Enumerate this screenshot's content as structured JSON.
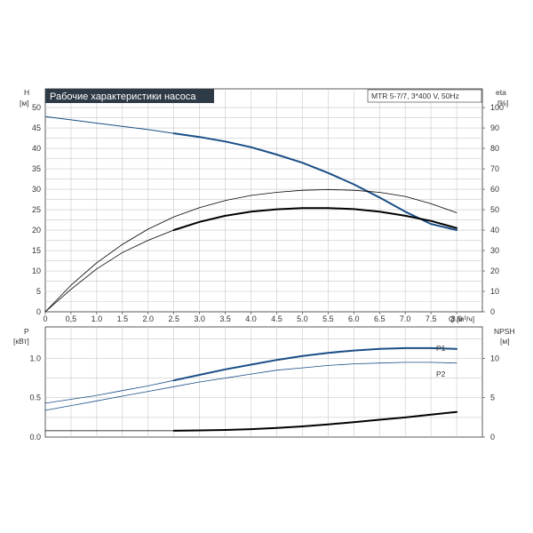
{
  "colors": {
    "title_bg": "#2e3a45",
    "title_fg": "#ffffff",
    "blue": "#1a4e86",
    "grid": "#c8c8c8",
    "axis": "#333333",
    "black": "#000000"
  },
  "header": {
    "title": "Рабочие характеристики насоса",
    "model": "MTR 5-7/7, 3*400 V, 50Hz"
  },
  "chart_data": [
    {
      "type": "line",
      "name": "performance",
      "y_label_left": "H",
      "y_unit_left": "[м]",
      "y_label_right": "eta",
      "y_unit_right": "[%]",
      "x_label": "Q [м³/ч]",
      "xlim": [
        0,
        8.5
      ],
      "ylim": [
        0,
        50
      ],
      "ylim_right": [
        0,
        100
      ],
      "grid": true,
      "x_ticks": [
        "0",
        "0,5",
        "1.0",
        "1.5",
        "2.0",
        "2.5",
        "3.0",
        "3.5",
        "4.0",
        "4.5",
        "5.0",
        "5.5",
        "6.0",
        "6.5",
        "7.0",
        "7.5",
        "8.0"
      ],
      "y_ticks_left": [
        "0",
        "5",
        "10",
        "15",
        "20",
        "25",
        "30",
        "35",
        "40",
        "45",
        "50"
      ],
      "y_ticks_right": [
        "0",
        "10",
        "20",
        "30",
        "40",
        "50",
        "60",
        "70",
        "80",
        "90",
        "100"
      ],
      "series": [
        {
          "role": "head-thin",
          "axis": "left",
          "color": "#1a4e86",
          "width": 1,
          "points": [
            [
              0,
              47.8
            ],
            [
              0.5,
              47.0
            ],
            [
              1.0,
              46.2
            ],
            [
              1.5,
              45.4
            ],
            [
              2.0,
              44.6
            ],
            [
              2.5,
              43.7
            ]
          ]
        },
        {
          "role": "head-thick",
          "axis": "left",
          "color": "#1a4e86",
          "width": 2,
          "points": [
            [
              2.5,
              43.7
            ],
            [
              3.0,
              42.8
            ],
            [
              3.5,
              41.7
            ],
            [
              4.0,
              40.3
            ],
            [
              4.5,
              38.5
            ],
            [
              5.0,
              36.5
            ],
            [
              5.5,
              34.0
            ],
            [
              6.0,
              31.2
            ],
            [
              6.5,
              28.0
            ],
            [
              7.0,
              24.5
            ],
            [
              7.5,
              21.5
            ],
            [
              8.0,
              20.0
            ]
          ]
        },
        {
          "role": "eta-thin-upper",
          "axis": "right",
          "color": "#000000",
          "width": 0.8,
          "points": [
            [
              0,
              0
            ],
            [
              0.5,
              13
            ],
            [
              1.0,
              24
            ],
            [
              1.5,
              33
            ],
            [
              2.0,
              40.5
            ],
            [
              2.5,
              46.5
            ],
            [
              3.0,
              51
            ],
            [
              3.5,
              54.5
            ],
            [
              4.0,
              57
            ],
            [
              4.5,
              58.5
            ],
            [
              5.0,
              59.5
            ],
            [
              5.5,
              59.8
            ],
            [
              6.0,
              59.5
            ],
            [
              6.5,
              58.5
            ],
            [
              7.0,
              56.5
            ],
            [
              7.5,
              53
            ],
            [
              8.0,
              48.5
            ]
          ]
        },
        {
          "role": "eta-thin-lower",
          "axis": "right",
          "color": "#000000",
          "width": 0.8,
          "points": [
            [
              0,
              0
            ],
            [
              0.5,
              11
            ],
            [
              1.0,
              21
            ],
            [
              1.5,
              29
            ],
            [
              2.0,
              35
            ],
            [
              2.5,
              40
            ]
          ]
        },
        {
          "role": "eta-thick",
          "axis": "right",
          "color": "#000000",
          "width": 2,
          "points": [
            [
              2.5,
              40
            ],
            [
              3.0,
              44
            ],
            [
              3.5,
              47
            ],
            [
              4.0,
              49
            ],
            [
              4.5,
              50.2
            ],
            [
              5.0,
              50.8
            ],
            [
              5.5,
              50.8
            ],
            [
              6.0,
              50.3
            ],
            [
              6.5,
              49
            ],
            [
              7.0,
              47
            ],
            [
              7.5,
              44.5
            ],
            [
              8.0,
              41
            ]
          ]
        }
      ]
    },
    {
      "type": "line",
      "name": "power-npsh",
      "y_label_left": "P",
      "y_unit_left": "[кВт]",
      "y_label_right": "NPSH",
      "y_unit_right": "[м]",
      "xlim": [
        0,
        8.5
      ],
      "ylim": [
        0,
        1.4
      ],
      "ylim_right": [
        0,
        14
      ],
      "grid": true,
      "y_ticks_left": [
        "0.0",
        "0.5",
        "1.0"
      ],
      "y_ticks_right": [
        "0",
        "5",
        "10"
      ],
      "series": [
        {
          "name": "P1",
          "role": "p1-thin",
          "axis": "left",
          "color": "#1a4e86",
          "width": 0.8,
          "points": [
            [
              0,
              0.43
            ],
            [
              0.5,
              0.48
            ],
            [
              1.0,
              0.53
            ],
            [
              1.5,
              0.59
            ],
            [
              2.0,
              0.65
            ],
            [
              2.5,
              0.72
            ]
          ]
        },
        {
          "name": "P1",
          "role": "p1-thick",
          "axis": "left",
          "color": "#1a4e86",
          "width": 2,
          "points": [
            [
              2.5,
              0.72
            ],
            [
              3.0,
              0.79
            ],
            [
              3.5,
              0.86
            ],
            [
              4.0,
              0.92
            ],
            [
              4.5,
              0.98
            ],
            [
              5.0,
              1.03
            ],
            [
              5.5,
              1.07
            ],
            [
              6.0,
              1.1
            ],
            [
              6.5,
              1.12
            ],
            [
              7.0,
              1.13
            ],
            [
              7.5,
              1.13
            ],
            [
              8.0,
              1.12
            ]
          ]
        },
        {
          "name": "P2",
          "role": "p2",
          "axis": "left",
          "color": "#1a4e86",
          "width": 0.8,
          "points": [
            [
              0,
              0.34
            ],
            [
              0.5,
              0.4
            ],
            [
              1.0,
              0.46
            ],
            [
              1.5,
              0.52
            ],
            [
              2.0,
              0.58
            ],
            [
              2.5,
              0.64
            ],
            [
              3.0,
              0.7
            ],
            [
              3.5,
              0.75
            ],
            [
              4.0,
              0.8
            ],
            [
              4.5,
              0.85
            ],
            [
              5.0,
              0.88
            ],
            [
              5.5,
              0.91
            ],
            [
              6.0,
              0.93
            ],
            [
              6.5,
              0.94
            ],
            [
              7.0,
              0.95
            ],
            [
              7.5,
              0.95
            ],
            [
              8.0,
              0.94
            ]
          ]
        },
        {
          "role": "npsh-thin",
          "axis": "right",
          "color": "#000000",
          "width": 0.8,
          "points": [
            [
              0,
              0.8
            ],
            [
              1.0,
              0.8
            ],
            [
              2.0,
              0.8
            ],
            [
              2.5,
              0.8
            ]
          ]
        },
        {
          "role": "npsh-thick",
          "axis": "right",
          "color": "#000000",
          "width": 2,
          "points": [
            [
              2.5,
              0.8
            ],
            [
              3.0,
              0.85
            ],
            [
              3.5,
              0.9
            ],
            [
              4.0,
              1.0
            ],
            [
              4.5,
              1.15
            ],
            [
              5.0,
              1.35
            ],
            [
              5.5,
              1.6
            ],
            [
              6.0,
              1.9
            ],
            [
              6.5,
              2.2
            ],
            [
              7.0,
              2.5
            ],
            [
              7.5,
              2.85
            ],
            [
              8.0,
              3.2
            ]
          ]
        }
      ],
      "labels": [
        "P1",
        "P2"
      ]
    }
  ]
}
